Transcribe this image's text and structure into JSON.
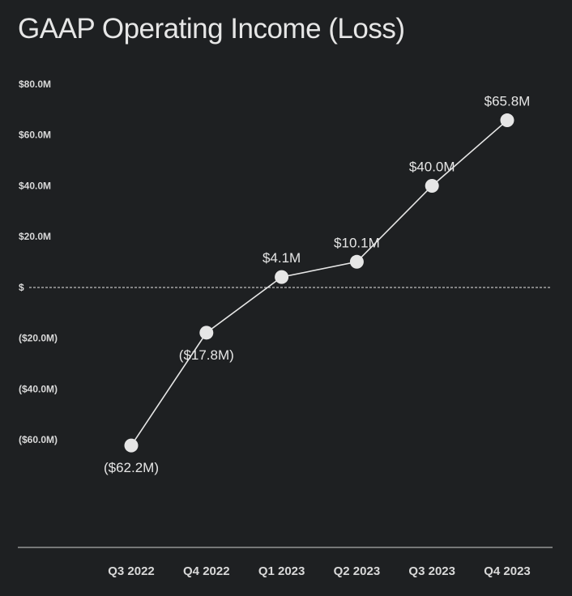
{
  "chart_data": {
    "type": "line",
    "title": "GAAP Operating Income (Loss)",
    "categories": [
      "Q3 2022",
      "Q4 2022",
      "Q1 2023",
      "Q2 2023",
      "Q3 2023",
      "Q4 2023"
    ],
    "values": [
      -62.2,
      -17.8,
      4.1,
      10.1,
      40.0,
      65.8
    ],
    "data_labels": [
      "($62.2M)",
      "($17.8M)",
      "$4.1M",
      "$10.1M",
      "$40.0M",
      "$65.8M"
    ],
    "y_ticks": [
      80,
      60,
      40,
      20,
      0,
      -20,
      -40,
      -60
    ],
    "y_tick_labels": [
      "$80.0M",
      "$60.0M",
      "$40.0M",
      "$20.0M",
      "$",
      "($20.0M)",
      "($40.0M)",
      "($60.0M)"
    ],
    "ylim": [
      -102,
      80
    ],
    "zero_line": "dashed",
    "grid": false,
    "colors": {
      "background": "#1e2022",
      "line": "#e6e6e6",
      "marker": "#e6e6e6",
      "text": "#e6e6e6"
    }
  }
}
